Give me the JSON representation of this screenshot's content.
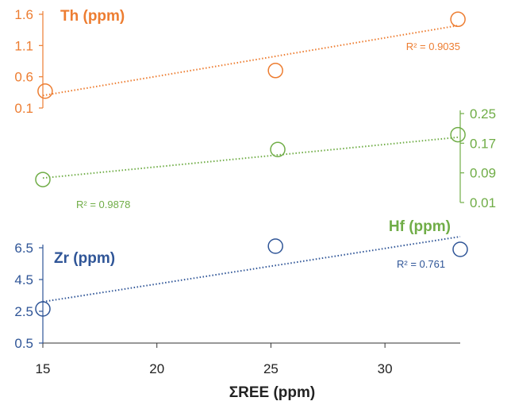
{
  "chart_data": {
    "type": "scatter",
    "x_axis": {
      "label": "ΣREE (ppm)",
      "ticks": [
        15,
        20,
        25,
        30
      ],
      "range": [
        15,
        33.3
      ]
    },
    "panels": [
      {
        "id": "th",
        "name": "Th (ppm)",
        "color": "#ED7D31",
        "axis_side": "left",
        "ticks": [
          0.1,
          0.6,
          1.1,
          1.6
        ],
        "range": [
          0.1,
          1.6
        ],
        "points": [
          [
            15.1,
            0.37
          ],
          [
            25.2,
            0.7
          ],
          [
            33.2,
            1.52
          ]
        ],
        "trend_start": [
          15,
          0.3
        ],
        "trend_end": [
          33.2,
          1.42
        ],
        "r2_label": "R² = 0.9035"
      },
      {
        "id": "hf",
        "name": "Hf (ppm)",
        "color": "#70AD47",
        "axis_side": "right",
        "ticks": [
          0.01,
          0.09,
          0.17,
          0.25
        ],
        "range": [
          0.01,
          0.25
        ],
        "points": [
          [
            15.0,
            0.072
          ],
          [
            25.3,
            0.153
          ],
          [
            33.2,
            0.193
          ]
        ],
        "trend_start": [
          15,
          0.076
        ],
        "trend_end": [
          33.2,
          0.186
        ],
        "r2_label": "R² = 0.9878"
      },
      {
        "id": "zr",
        "name": "Zr (ppm)",
        "color": "#2F5597",
        "axis_side": "left",
        "ticks": [
          0.5,
          2.5,
          4.5,
          6.5
        ],
        "range": [
          0.5,
          6.5
        ],
        "points": [
          [
            15.0,
            2.65
          ],
          [
            25.2,
            6.6
          ],
          [
            33.3,
            6.4
          ]
        ],
        "trend_start": [
          15,
          3.1
        ],
        "trend_end": [
          33.3,
          7.2
        ],
        "r2_label": "R² = 0.761"
      }
    ]
  }
}
